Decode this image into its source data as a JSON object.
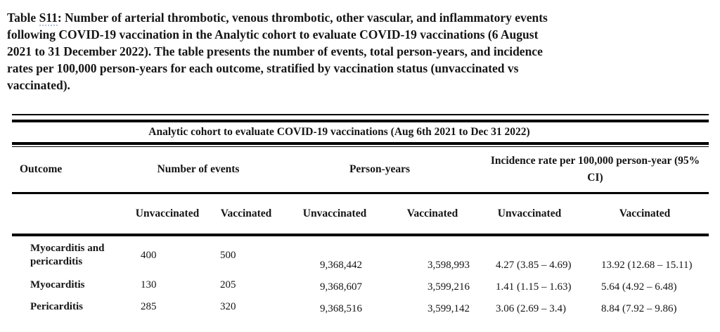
{
  "caption": {
    "prefix": "Table ",
    "id": "S11",
    "line1_rest": ": Number of arterial thrombotic, venous thrombotic, other vascular, and inflammatory events",
    "lines": [
      "following COVID-19 vaccination in the Analytic cohort to evaluate COVID-19 vaccinations (6 August",
      "2021 to 31 December 2022). The table presents the number of events, total person-years, and incidence",
      "rates per 100,000 person-years for each outcome, stratified by vaccination status (unvaccinated vs",
      "vaccinated)."
    ]
  },
  "table": {
    "span_header": "Analytic cohort to evaluate COVID-19 vaccinations (Aug 6th 2021 to Dec 31 2022)",
    "col_groups": {
      "outcome": "Outcome",
      "events": "Number of events",
      "person_years": "Person-years",
      "incidence": "Incidence rate per 100,000 person-year (95% CI)"
    },
    "sub_headers": {
      "events_unvax": "Unvaccinated",
      "events_vax": "Vaccinated",
      "py_unvax": "Unvaccinated",
      "py_vax": "Vaccinated",
      "rate_unvax": "Unvaccinated",
      "rate_vax": "Vaccinated"
    },
    "rows": [
      {
        "outcome": "Myocarditis and pericarditis",
        "events_unvax": "400",
        "events_vax": "500",
        "py_unvax": "9,368,442",
        "py_vax": "3,598,993",
        "rate_unvax": "4.27 (3.85 – 4.69)",
        "rate_vax": "13.92 (12.68 – 15.11)"
      },
      {
        "outcome": "Myocarditis",
        "events_unvax": "130",
        "events_vax": "205",
        "py_unvax": "9,368,607",
        "py_vax": "3,599,216",
        "rate_unvax": "1.41 (1.15 – 1.63)",
        "rate_vax": "5.64 (4.92 – 6.48)"
      },
      {
        "outcome": "Pericarditis",
        "events_unvax": "285",
        "events_vax": "320",
        "py_unvax": "9,368,516",
        "py_vax": "3,599,142",
        "rate_unvax": "3.06 (2.69 – 3.4)",
        "rate_vax": "8.84 (7.92 – 9.86)"
      }
    ]
  }
}
